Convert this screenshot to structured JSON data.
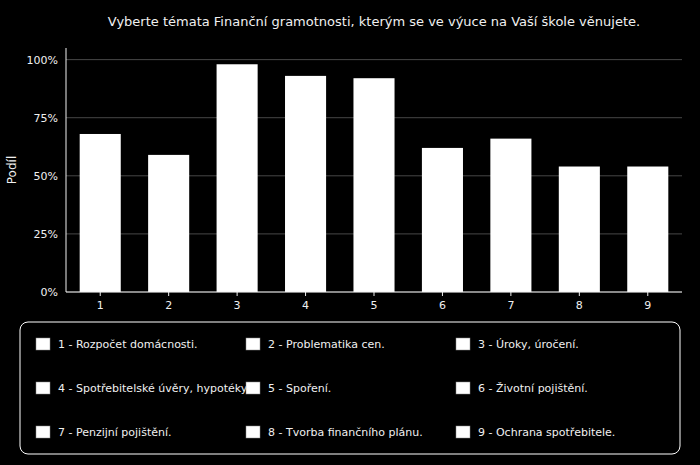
{
  "chart_data": {
    "type": "bar",
    "title": "Vyberte témata Finanční gramotnosti, kterým se ve výuce na Vaší škole věnujete.",
    "ylabel": "Podíl",
    "categories": [
      "1",
      "2",
      "3",
      "4",
      "5",
      "6",
      "7",
      "8",
      "9"
    ],
    "values": [
      0.68,
      0.59,
      0.98,
      0.93,
      0.92,
      0.62,
      0.66,
      0.54,
      0.54
    ],
    "color": "#ffffff",
    "ylim": [
      0,
      1.05
    ],
    "yticks": [
      {
        "value": 0.0,
        "label": "0%"
      },
      {
        "value": 0.25,
        "label": "25%"
      },
      {
        "value": 0.5,
        "label": "50%"
      },
      {
        "value": 0.75,
        "label": "75%"
      },
      {
        "value": 1.0,
        "label": "100%"
      }
    ],
    "grid": true,
    "annotations": [
      "1 - Rozpočet domácnosti.",
      "2 - Problematika cen.",
      "3 - Úroky, úročení.",
      "4 - Spotřebitelské úvěry, hypotéky.",
      "5 - Spoření.",
      "6 - Životní pojištění.",
      "7 - Penzijní pojištění.",
      "8 - Tvorba finančního plánu.",
      "9 - Ochrana spotřebitele."
    ]
  }
}
